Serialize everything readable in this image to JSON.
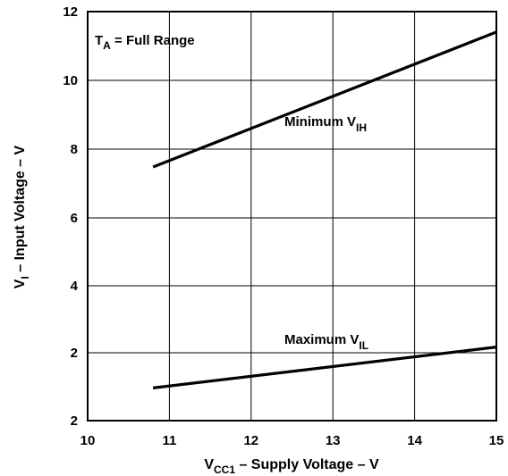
{
  "chart_data": {
    "type": "line",
    "xlabel": {
      "prefix": "V",
      "subscript": "CC1",
      "suffix": " – Supply Voltage – V"
    },
    "ylabel": {
      "prefix": "V",
      "subscript": "I",
      "suffix": " – Input Voltage – V"
    },
    "xlim": [
      10,
      15
    ],
    "ylim": [
      2,
      12
    ],
    "x_ticks": [
      "10",
      "11",
      "12",
      "13",
      "14",
      "15"
    ],
    "y_ticks": [
      "2",
      "2",
      "4",
      "6",
      "8",
      "10",
      "12"
    ],
    "grid": true,
    "annotation": {
      "prefix": "T",
      "subscript": "A",
      "suffix": " = Full Range"
    },
    "series": [
      {
        "label": {
          "prefix": "Minimum V",
          "subscript": "IH"
        },
        "x": [
          10.8,
          15.0
        ],
        "y": [
          8.2,
          11.5
        ]
      },
      {
        "label": {
          "prefix": "Maximum V",
          "subscript": "IL"
        },
        "x": [
          10.8,
          15.0
        ],
        "y": [
          2.8,
          3.8
        ]
      }
    ]
  }
}
